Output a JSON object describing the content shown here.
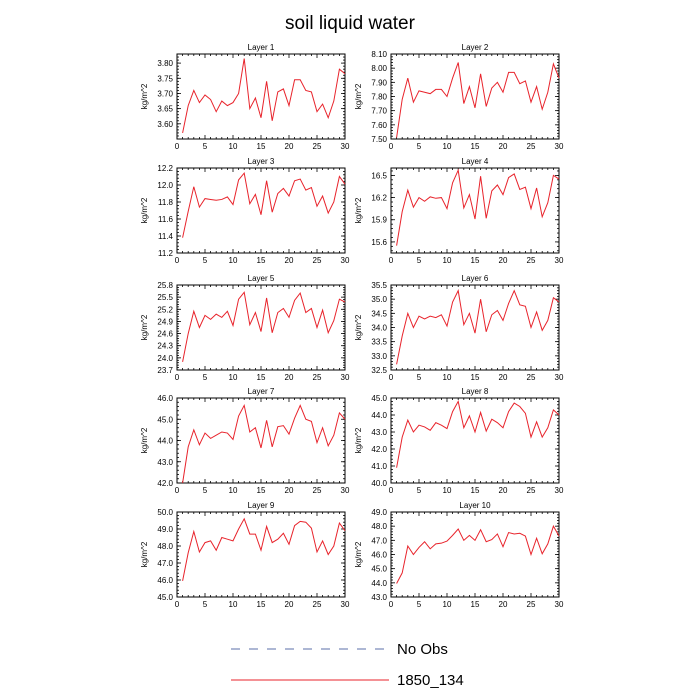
{
  "title": "soil liquid water",
  "chart_data": {
    "type": "line",
    "title": "soil liquid water",
    "ylabel": "kg/m^2",
    "xlim": [
      0,
      30
    ],
    "xticks": [
      0,
      5,
      10,
      15,
      20,
      25,
      30
    ],
    "legend": {
      "placement": "bottom-center",
      "entries": [
        {
          "name": "No Obs",
          "style": "dashed",
          "color": "#5b6fa8"
        },
        {
          "name": "1850_134",
          "style": "solid",
          "color": "#e8232b"
        }
      ]
    },
    "series_color": "#e8232b",
    "panels": [
      {
        "name": "Layer 1",
        "yticks": [
          "3.60",
          "3.65",
          "3.70",
          "3.75",
          "3.80"
        ],
        "ylim": [
          3.55,
          3.83
        ],
        "values": [
          3.57,
          3.66,
          3.71,
          3.67,
          3.695,
          3.68,
          3.64,
          3.675,
          3.66,
          3.67,
          3.7,
          3.815,
          3.65,
          3.685,
          3.62,
          3.74,
          3.61,
          3.705,
          3.715,
          3.66,
          3.745,
          3.745,
          3.71,
          3.705,
          3.64,
          3.665,
          3.62,
          3.675,
          3.78,
          3.765
        ]
      },
      {
        "name": "Layer 2",
        "yticks": [
          "7.50",
          "7.60",
          "7.70",
          "7.80",
          "7.90",
          "8.00",
          "8.10"
        ],
        "ylim": [
          7.5,
          8.1
        ],
        "values": [
          7.51,
          7.78,
          7.93,
          7.76,
          7.84,
          7.83,
          7.82,
          7.85,
          7.85,
          7.8,
          7.93,
          8.04,
          7.75,
          7.87,
          7.72,
          7.96,
          7.73,
          7.86,
          7.9,
          7.83,
          7.97,
          7.97,
          7.89,
          7.91,
          7.76,
          7.87,
          7.71,
          7.83,
          8.03,
          7.93
        ]
      },
      {
        "name": "Layer 3",
        "yticks": [
          "11.2",
          "11.4",
          "11.6",
          "11.8",
          "12.0",
          "12.2"
        ],
        "ylim": [
          11.2,
          12.2
        ],
        "values": [
          11.38,
          11.69,
          11.98,
          11.74,
          11.84,
          11.83,
          11.82,
          11.83,
          11.86,
          11.77,
          12.06,
          12.14,
          11.78,
          11.89,
          11.65,
          12.05,
          11.68,
          11.9,
          11.96,
          11.87,
          12.05,
          12.07,
          11.94,
          11.97,
          11.75,
          11.87,
          11.67,
          11.8,
          12.1,
          12.01
        ]
      },
      {
        "name": "Layer 4",
        "yticks": [
          "15.6",
          "15.9",
          "16.2",
          "16.5"
        ],
        "ylim": [
          15.45,
          16.6
        ],
        "values": [
          15.55,
          16.01,
          16.3,
          16.07,
          16.2,
          16.15,
          16.21,
          16.19,
          16.2,
          16.05,
          16.4,
          16.57,
          16.06,
          16.24,
          15.91,
          16.49,
          15.92,
          16.29,
          16.37,
          16.24,
          16.47,
          16.52,
          16.31,
          16.34,
          16.05,
          16.33,
          15.94,
          16.13,
          16.5,
          16.45
        ]
      },
      {
        "name": "Layer 5",
        "yticks": [
          "23.7",
          "24.0",
          "24.3",
          "24.6",
          "24.9",
          "25.2",
          "25.5",
          "25.8"
        ],
        "ylim": [
          23.7,
          25.8
        ],
        "values": [
          23.9,
          24.6,
          25.15,
          24.75,
          25.05,
          24.95,
          25.08,
          25.0,
          25.15,
          24.8,
          25.45,
          25.62,
          24.82,
          25.12,
          24.65,
          25.48,
          24.62,
          25.12,
          25.22,
          25.0,
          25.42,
          25.6,
          25.12,
          25.22,
          24.75,
          25.18,
          24.62,
          24.92,
          25.45,
          25.38
        ]
      },
      {
        "name": "Layer 6",
        "yticks": [
          "32.5",
          "33.0",
          "33.5",
          "34.0",
          "34.5",
          "35.0",
          "35.5"
        ],
        "ylim": [
          32.5,
          35.5
        ],
        "values": [
          32.7,
          33.7,
          34.5,
          34.0,
          34.4,
          34.3,
          34.4,
          34.35,
          34.45,
          34.05,
          34.9,
          35.3,
          34.1,
          34.5,
          33.8,
          35.0,
          33.85,
          34.45,
          34.6,
          34.25,
          34.85,
          35.3,
          34.8,
          34.75,
          34.0,
          34.55,
          33.9,
          34.25,
          35.05,
          34.9
        ]
      },
      {
        "name": "Layer 7",
        "yticks": [
          "42.0",
          "43.0",
          "44.0",
          "45.0",
          "46.0"
        ],
        "ylim": [
          42.0,
          46.0
        ],
        "values": [
          42.0,
          43.7,
          44.5,
          43.8,
          44.35,
          44.1,
          44.25,
          44.4,
          44.35,
          44.05,
          45.15,
          45.65,
          44.4,
          44.6,
          43.65,
          44.95,
          43.7,
          44.65,
          44.7,
          44.3,
          45.05,
          45.65,
          45.0,
          44.9,
          43.9,
          44.6,
          43.75,
          44.25,
          45.3,
          45.0
        ]
      },
      {
        "name": "Layer 8",
        "yticks": [
          "40.0",
          "41.0",
          "42.0",
          "43.0",
          "44.0",
          "45.0"
        ],
        "ylim": [
          40.0,
          45.0
        ],
        "values": [
          40.9,
          42.7,
          43.7,
          43.0,
          43.4,
          43.3,
          43.1,
          43.55,
          43.4,
          43.2,
          44.2,
          44.8,
          43.25,
          43.95,
          43.0,
          44.15,
          43.05,
          43.75,
          43.55,
          43.25,
          44.2,
          44.7,
          44.5,
          44.1,
          42.7,
          43.6,
          42.7,
          43.25,
          44.3,
          44.0
        ]
      },
      {
        "name": "Layer 9",
        "yticks": [
          "45.0",
          "46.0",
          "47.0",
          "48.0",
          "49.0",
          "50.0"
        ],
        "ylim": [
          45.0,
          50.0
        ],
        "values": [
          45.95,
          47.6,
          48.85,
          47.65,
          48.2,
          48.3,
          47.75,
          48.5,
          48.4,
          48.3,
          49.0,
          49.6,
          48.7,
          48.7,
          47.75,
          49.15,
          48.2,
          48.4,
          48.75,
          48.1,
          49.2,
          49.45,
          49.4,
          49.05,
          47.65,
          48.3,
          47.5,
          48.0,
          49.35,
          48.9
        ]
      },
      {
        "name": "Layer 10",
        "yticks": [
          "43.0",
          "44.0",
          "45.0",
          "46.0",
          "47.0",
          "48.0",
          "49.0"
        ],
        "ylim": [
          43.0,
          49.0
        ],
        "values": [
          43.95,
          44.7,
          46.6,
          46.0,
          46.5,
          46.9,
          46.4,
          46.75,
          46.8,
          46.95,
          47.35,
          47.8,
          47.0,
          47.35,
          47.0,
          47.75,
          46.9,
          47.05,
          47.45,
          46.55,
          47.55,
          47.45,
          47.5,
          47.3,
          46.0,
          47.15,
          46.05,
          46.75,
          48.0,
          47.3
        ]
      }
    ]
  }
}
